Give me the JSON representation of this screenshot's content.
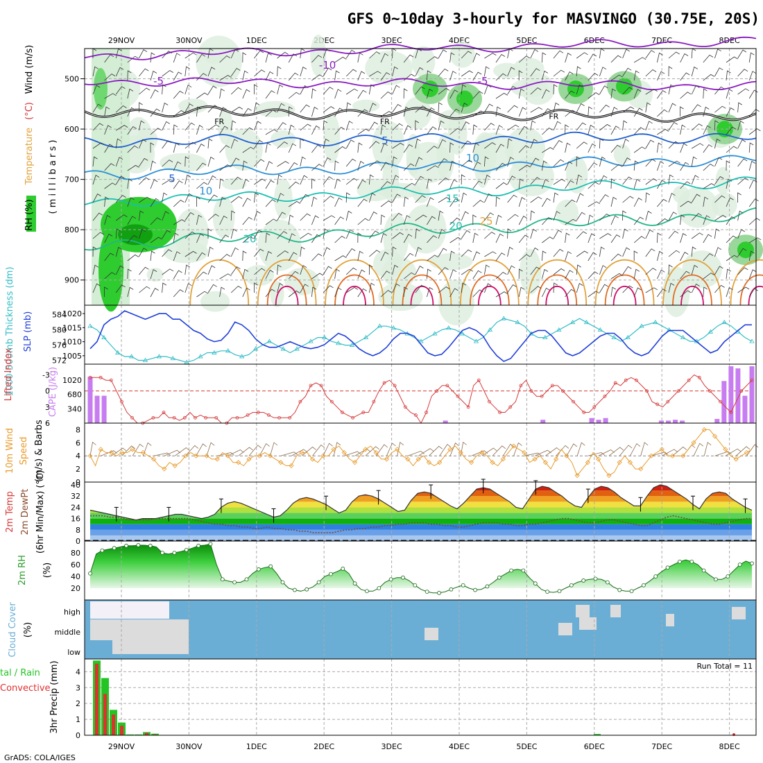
{
  "title": "GFS 0~10day 3-hourly for MASVINGO (30.75E, 20S)",
  "footer": "GrADS: COLA/IGES",
  "colors": {
    "rh_green": "#2ecc2e",
    "rh_light": "#dceedd",
    "temp_orange": "#e2a13a",
    "temp_cyan": "#1bbfb2",
    "temp_blue": "#1f5fcf",
    "temp_purple": "#8a1ac2",
    "slp_blue": "#1f3fd8",
    "thick_cyan": "#33bcc7",
    "li_red": "#d63a3a",
    "cape_purple": "#c77df0",
    "wind_orange": "#e89a2a",
    "barb_brown": "#8a6a4a",
    "cloud_blue": "#6aaed6",
    "cloud_gray": "#dcdcdc",
    "precip_green": "#25c425",
    "precip_red": "#e03030"
  },
  "chart_data": [
    {
      "type": "heatmap",
      "panel": "upper_air",
      "ylabel_parts": [
        "RH (%)",
        "Temperature (°C)",
        "Wind (m/s)"
      ],
      "ylabel2": "( m i l l i b a r s )",
      "x_labels": [
        "29NOV",
        "30NOV",
        "1DEC",
        "2DEC",
        "3DEC",
        "4DEC",
        "5DEC",
        "6DEC",
        "7DEC",
        "8DEC"
      ],
      "yticks": [
        500,
        600,
        700,
        800,
        900
      ],
      "ylim": [
        440,
        950
      ],
      "temp_contour_labels": [
        {
          "text": "-10",
          "t": 3.6,
          "p": 480
        },
        {
          "text": "-5",
          "t": 1.1,
          "p": 512
        },
        {
          "text": "-5",
          "t": 5.9,
          "p": 512
        },
        {
          "text": "FR",
          "t": 2.0,
          "p": 590
        },
        {
          "text": "FR",
          "t": 4.45,
          "p": 590
        },
        {
          "text": "FR",
          "t": 6.95,
          "p": 580
        },
        {
          "text": "5",
          "t": 4.45,
          "p": 630
        },
        {
          "text": "5",
          "t": 1.3,
          "p": 705
        },
        {
          "text": "10",
          "t": 5.75,
          "p": 665
        },
        {
          "text": "10",
          "t": 1.8,
          "p": 730
        },
        {
          "text": "15",
          "t": 5.45,
          "p": 745
        },
        {
          "text": "20",
          "t": 5.5,
          "p": 800
        },
        {
          "text": "20",
          "t": 2.45,
          "p": 825
        },
        {
          "text": "25",
          "t": 5.95,
          "p": 790
        }
      ],
      "temperature_levels": [
        -10,
        -5,
        0,
        5,
        10,
        15,
        20,
        25,
        30
      ]
    },
    {
      "type": "line",
      "panel": "slp_thickness",
      "ylabel_left": "1000-500mb Thickness (dm)",
      "ylabel_right": "SLP (mb)",
      "thickness_ticks": [
        572,
        576,
        580,
        584
      ],
      "slp_ticks": [
        1005,
        1010,
        1015,
        1020
      ],
      "series": [
        {
          "name": "SLP (mb)",
          "ylim": [
            1002,
            1023
          ],
          "values": [
            1007.5,
            1010,
            1016,
            1018,
            1019,
            1021,
            1020,
            1019,
            1018,
            1019,
            1020,
            1020,
            1018,
            1018,
            1016,
            1014,
            1013,
            1011,
            1010,
            1010.5,
            1013,
            1017,
            1016,
            1014,
            1011,
            1009,
            1008,
            1008,
            1009,
            1010,
            1009,
            1008,
            1007.5,
            1008,
            1009,
            1011,
            1013,
            1012,
            1010,
            1007.5,
            1006,
            1005,
            1006,
            1008,
            1011,
            1013,
            1013,
            1012,
            1009,
            1006,
            1005,
            1005.5,
            1008,
            1011,
            1014,
            1015,
            1014,
            1012,
            1008,
            1005,
            1003,
            1004,
            1007,
            1010,
            1013,
            1014,
            1014,
            1012,
            1009,
            1006,
            1005,
            1006,
            1008,
            1010,
            1012,
            1013,
            1013,
            1011,
            1008,
            1006,
            1005,
            1006,
            1009,
            1012,
            1014,
            1014,
            1014,
            1012,
            1010,
            1008,
            1006,
            1007,
            1010,
            1012,
            1014,
            1016,
            1016
          ]
        },
        {
          "name": "1000-500mb Thickness (dm)",
          "ylim": [
            571,
            586.5
          ],
          "values": [
            581,
            580,
            578,
            576,
            574,
            573,
            573,
            572,
            572,
            572.5,
            573,
            573,
            572.5,
            572,
            571.5,
            572,
            573,
            574,
            574,
            574.5,
            574.5,
            573.5,
            573,
            573.5,
            575,
            576,
            577,
            576,
            575,
            574,
            575,
            576,
            577,
            578,
            578,
            577,
            576.5,
            576,
            576,
            577,
            578,
            579.5,
            581,
            581,
            580.5,
            580,
            579,
            578,
            577,
            578,
            579,
            580,
            580.5,
            580,
            579,
            578,
            577,
            578,
            580,
            582,
            583,
            582.5,
            582,
            581,
            579,
            578,
            578,
            579,
            580,
            581,
            582,
            583,
            582,
            581,
            580,
            579,
            578,
            577,
            578,
            579.5,
            581,
            581.5,
            582,
            581,
            580,
            579,
            578,
            577,
            577,
            578,
            579.5,
            581,
            582,
            581,
            579.5,
            578,
            577
          ]
        }
      ]
    },
    {
      "type": "line",
      "panel": "li_cape",
      "ylabel_left": "Lifted Index",
      "ylabel_right": "CAPE (J/kg)",
      "li_ticks": [
        -3,
        0,
        3,
        6
      ],
      "cape_ticks": [
        340,
        680,
        1020
      ],
      "series": [
        {
          "name": "Lifted Index",
          "ylim": [
            6,
            -5
          ],
          "values": [
            -2.5,
            -2.5,
            -2.5,
            -2,
            -2,
            0,
            2,
            4,
            5,
            6,
            6,
            5.5,
            5,
            5,
            4,
            5,
            5,
            5.5,
            5,
            4,
            5,
            4.5,
            5,
            5,
            5,
            6,
            6,
            5,
            5,
            5,
            4.5,
            4,
            4,
            4,
            4.5,
            5,
            5,
            5,
            5,
            4,
            2,
            1,
            -1,
            -1.5,
            -1,
            1,
            2,
            3,
            4,
            4.5,
            5,
            4.5,
            4,
            4,
            2,
            0,
            -1.5,
            -2,
            -1,
            1,
            3,
            4,
            4.5,
            6,
            4,
            1,
            0,
            -1,
            -1,
            0,
            1,
            2,
            3,
            -1,
            -2,
            0,
            2,
            3,
            4,
            4,
            3,
            2,
            -1,
            -2,
            0,
            1,
            1,
            0,
            -1,
            -1,
            0,
            1,
            2,
            3,
            4,
            4,
            3,
            2,
            1,
            0,
            -1.5,
            -1,
            -2,
            -2.5,
            -2,
            -1,
            0,
            2,
            2.5,
            3,
            2,
            1,
            0,
            -1,
            -2,
            -3,
            -2.5,
            -1,
            0,
            1,
            2,
            3,
            4,
            2,
            0,
            -1,
            -2
          ]
        },
        {
          "name": "CAPE (J/kg)",
          "ylim": [
            0,
            1400
          ],
          "values": [
            1100,
            650,
            650,
            0,
            0,
            0,
            0,
            0,
            0,
            0,
            0,
            0,
            0,
            0,
            0,
            0,
            0,
            0,
            0,
            0,
            0,
            0,
            0,
            0,
            0,
            0,
            0,
            0,
            0,
            0,
            0,
            0,
            0,
            0,
            0,
            0,
            0,
            0,
            0,
            0,
            0,
            0,
            0,
            0,
            0,
            0,
            0,
            0,
            0,
            0,
            0,
            0,
            0,
            0,
            0,
            0,
            0,
            0,
            0,
            0,
            0,
            0,
            0,
            0,
            0,
            0,
            0,
            0,
            0,
            0,
            0,
            0,
            0,
            0,
            0,
            0,
            0,
            0,
            0,
            0,
            0,
            0,
            0,
            0,
            0,
            0,
            0,
            0,
            0,
            0,
            0,
            0,
            0,
            0,
            0,
            0,
            0,
            0,
            0,
            0,
            0,
            0,
            0,
            0,
            0,
            0,
            0,
            0,
            0,
            0,
            0,
            0,
            0,
            0,
            0,
            0,
            0,
            0,
            0,
            0,
            0,
            0,
            0,
            0
          ]
        }
      ]
    },
    {
      "type": "line",
      "panel": "wind10m",
      "ylabel": "10m Wind Speed (m/s) & Barbs",
      "yticks": [
        0,
        2,
        4,
        6,
        8
      ],
      "ylim": [
        0,
        9
      ],
      "values": [
        4,
        2.5,
        5,
        4.5,
        4.5,
        4,
        4.5,
        4.5,
        5,
        4.5,
        4.5,
        4,
        3.5,
        2.5,
        2,
        3,
        2.5,
        3,
        4,
        4.5,
        4,
        4,
        4,
        3.5,
        3.5,
        4.5,
        4,
        3,
        3,
        2.5,
        3.5,
        4,
        4,
        4.5,
        4,
        3.5,
        3,
        2.5,
        2.5,
        4,
        4.5,
        4.5,
        3.5,
        3,
        4,
        4,
        5,
        5.5,
        4.5,
        3.5,
        3,
        4,
        5,
        5.5,
        4.5,
        3.5,
        3.5,
        4.5,
        5,
        4,
        3.5,
        2.5,
        3.5,
        4,
        3,
        2.5,
        3,
        4,
        5,
        5.5,
        4.5,
        3.5,
        3,
        4,
        4.5,
        4,
        3,
        2.5,
        3.5,
        4.5,
        5.5,
        5,
        4.5,
        3,
        3.5,
        4,
        3,
        2,
        3.5,
        5,
        4,
        3,
        1,
        2,
        3,
        4.5,
        3.5,
        2,
        1,
        1.5,
        3,
        4,
        3,
        2,
        2,
        3,
        4,
        4.5,
        5,
        4,
        4,
        4,
        4,
        5,
        6,
        7,
        8,
        8,
        7,
        6,
        5,
        4,
        3.5,
        4,
        4.5,
        5
      ]
    },
    {
      "type": "area",
      "panel": "temp2m",
      "ylabel": "2m Temp 2m DewPt (6hr Min/Max) (°C)",
      "yticks": [
        0,
        8,
        16,
        24,
        32,
        40
      ],
      "ylim": [
        0,
        42
      ],
      "series": [
        {
          "name": "2m Temp",
          "values": [
            22,
            21,
            20,
            19,
            18,
            17,
            16,
            15,
            16,
            16,
            16,
            17,
            18,
            19,
            19,
            18,
            17,
            16,
            17,
            19,
            24,
            27,
            28,
            27,
            25,
            23,
            21,
            19,
            17,
            18,
            22,
            27,
            30,
            31,
            30,
            28,
            26,
            23,
            20,
            22,
            28,
            32,
            33,
            32,
            30,
            27,
            24,
            21,
            22,
            29,
            34,
            35,
            34,
            31,
            28,
            25,
            23,
            27,
            32,
            37,
            38,
            37,
            34,
            31,
            28,
            24,
            23,
            30,
            37,
            39,
            38,
            35,
            32,
            28,
            25,
            24,
            31,
            37,
            39,
            38,
            35,
            31,
            28,
            25,
            25,
            32,
            38,
            40,
            39,
            36,
            33,
            30,
            26,
            23,
            30,
            34,
            35,
            34,
            30,
            27,
            24,
            22
          ]
        },
        {
          "name": "2m DewPt",
          "values": [
            18,
            18,
            18,
            17,
            17,
            16,
            15,
            15,
            15,
            15,
            16,
            16,
            16,
            16,
            16,
            16,
            15,
            14,
            13,
            12,
            12,
            11,
            11,
            10,
            10,
            9,
            9,
            10,
            9,
            9,
            8,
            8,
            7,
            7,
            6,
            6,
            6,
            6,
            7,
            8,
            8,
            9,
            9,
            10,
            10,
            11,
            11,
            12,
            12,
            13,
            13,
            13,
            12,
            12,
            11,
            11,
            10,
            10,
            11,
            12,
            13,
            13,
            13,
            12,
            12,
            11,
            11,
            12,
            12,
            13,
            14,
            15,
            16,
            16,
            15,
            14,
            13,
            13,
            14,
            15,
            15,
            14,
            13,
            12,
            11,
            11,
            13,
            15,
            17,
            18,
            17,
            16,
            15,
            14,
            13,
            12,
            12,
            13,
            14,
            15,
            16,
            16
          ]
        }
      ]
    },
    {
      "type": "area",
      "panel": "rh2m",
      "ylabel": "2m RH (%)",
      "yticks": [
        20,
        40,
        60,
        80
      ],
      "ylim": [
        0,
        100
      ],
      "values": [
        45,
        78,
        84,
        86,
        88,
        90,
        92,
        92,
        93,
        93,
        92,
        90,
        80,
        78,
        80,
        82,
        85,
        88,
        92,
        93,
        95,
        60,
        35,
        32,
        30,
        30,
        35,
        45,
        52,
        55,
        57,
        45,
        30,
        20,
        17,
        15,
        18,
        22,
        30,
        40,
        44,
        48,
        53,
        45,
        28,
        18,
        15,
        15,
        20,
        30,
        35,
        38,
        38,
        33,
        25,
        18,
        14,
        12,
        12,
        14,
        18,
        22,
        25,
        20,
        17,
        18,
        23,
        30,
        38,
        44,
        50,
        52,
        50,
        38,
        28,
        18,
        14,
        13,
        15,
        20,
        25,
        30,
        33,
        35,
        36,
        35,
        30,
        22,
        17,
        15,
        15,
        20,
        25,
        32,
        40,
        48,
        55,
        60,
        65,
        68,
        65,
        60,
        50,
        42,
        35,
        35,
        40,
        50,
        60,
        66,
        62
      ]
    },
    {
      "type": "area",
      "panel": "cloud",
      "ylabel": "Cloud Cover (%)",
      "layers": [
        "high",
        "middle",
        "low"
      ]
    },
    {
      "type": "bar",
      "panel": "precip",
      "ylabel_left": "Total / Rain Convective",
      "ylabel": "3hr Precip (mm)",
      "yticks": [
        0,
        1,
        2,
        3,
        4
      ],
      "ylim": [
        0,
        4.8
      ],
      "annotation": "Run Total = 11",
      "series": [
        {
          "name": "Total / Rain",
          "values": [
            4.7,
            3.6,
            1.6,
            0.8,
            0.05,
            0.05,
            0.2,
            0.1
          ]
        },
        {
          "name": "Convective",
          "values": [
            4.5,
            2.6,
            1.3,
            0.6,
            0,
            0,
            0.15,
            0.05
          ]
        }
      ]
    }
  ]
}
